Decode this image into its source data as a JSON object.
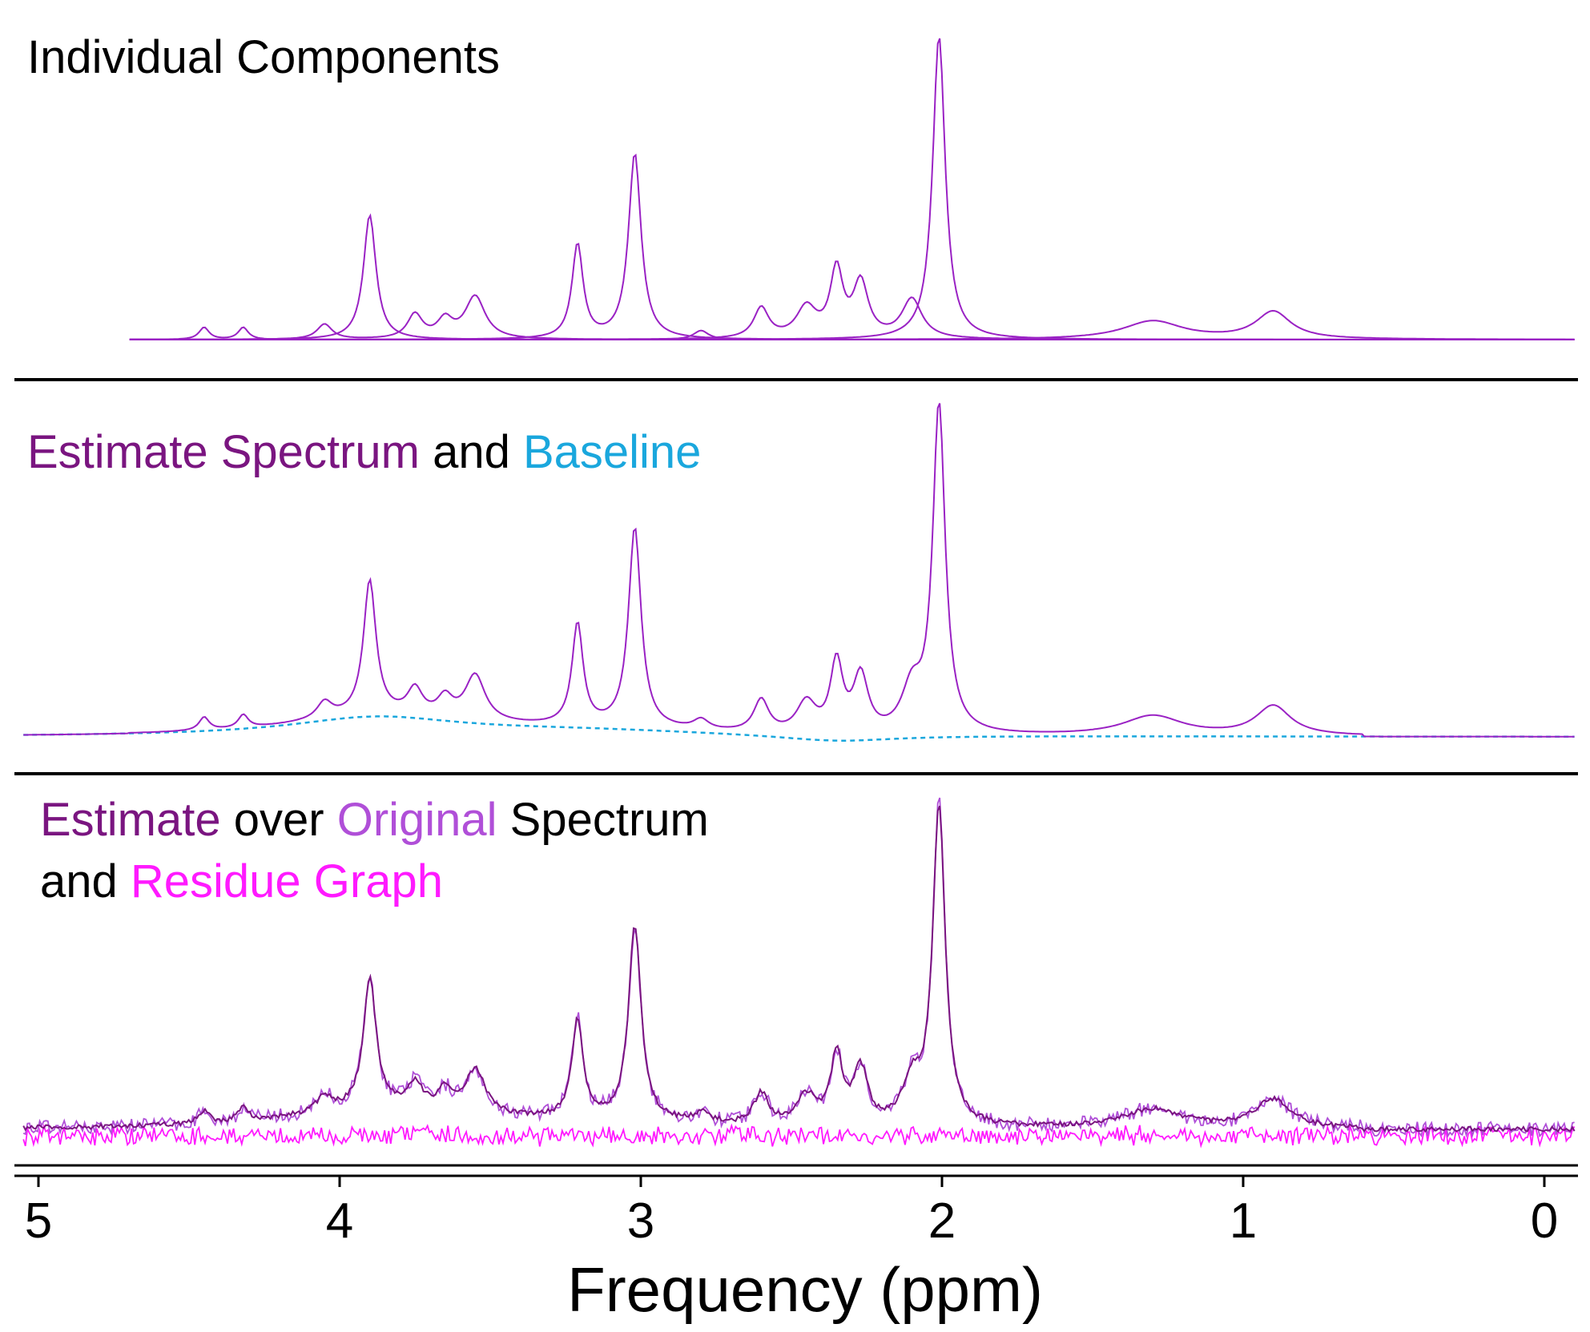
{
  "colors": {
    "black": "#000000",
    "dark_purple": "#7a1580",
    "purple": "#9a22c4",
    "light_purple": "#b04fd8",
    "cyan": "#1aa7dd",
    "magenta": "#ff1aff"
  },
  "panels": [
    {
      "title_segments": [
        {
          "text": "Individual Components",
          "color": "#000000"
        }
      ]
    },
    {
      "title_segments": [
        {
          "text": "Estimate Spectrum",
          "color": "#7a1580"
        },
        {
          "text": " and ",
          "color": "#000000"
        },
        {
          "text": "Baseline",
          "color": "#1aa7dd"
        }
      ]
    },
    {
      "title_line1": [
        {
          "text": "Estimate",
          "color": "#7a1580"
        },
        {
          "text": " over ",
          "color": "#000000"
        },
        {
          "text": "Original",
          "color": "#b04fd8"
        },
        {
          "text": " Spectrum",
          "color": "#000000"
        }
      ],
      "title_line2": [
        {
          "text": "and ",
          "color": "#000000"
        },
        {
          "text": "Residue Graph",
          "color": "#ff1aff"
        }
      ]
    }
  ],
  "x_axis": {
    "title": "Frequency (ppm)",
    "range": [
      5.05,
      -0.1
    ],
    "reversed": true,
    "ticks": [
      5,
      4,
      3,
      2,
      1,
      0
    ],
    "tick_labels": [
      "5",
      "4",
      "3",
      "2",
      "1",
      "0"
    ]
  },
  "chart_data": [
    {
      "type": "line",
      "title": "Individual Components",
      "x_range": [
        4.7,
        -0.1
      ],
      "series": [
        {
          "color": "#9a22c4",
          "peaks": [
            {
              "ppm": 3.9,
              "height": 0.41,
              "width": 0.025
            }
          ]
        },
        {
          "color": "#9a22c4",
          "peaks": [
            {
              "ppm": 3.21,
              "height": 0.31,
              "width": 0.022
            },
            {
              "ppm": 3.02,
              "height": 0.61,
              "width": 0.025
            }
          ]
        },
        {
          "color": "#9a22c4",
          "peaks": [
            {
              "ppm": 2.01,
              "height": 1.0,
              "width": 0.025
            }
          ]
        },
        {
          "color": "#9a22c4",
          "peaks": [
            {
              "ppm": 3.55,
              "height": 0.14,
              "width": 0.04
            },
            {
              "ppm": 3.75,
              "height": 0.08,
              "width": 0.03
            },
            {
              "ppm": 3.65,
              "height": 0.06,
              "width": 0.03
            },
            {
              "ppm": 4.05,
              "height": 0.05,
              "width": 0.03
            }
          ]
        },
        {
          "color": "#9a22c4",
          "peaks": [
            {
              "ppm": 2.35,
              "height": 0.22,
              "width": 0.025
            },
            {
              "ppm": 2.27,
              "height": 0.18,
              "width": 0.03
            },
            {
              "ppm": 2.45,
              "height": 0.1,
              "width": 0.04
            },
            {
              "ppm": 2.6,
              "height": 0.1,
              "width": 0.03
            },
            {
              "ppm": 2.1,
              "height": 0.13,
              "width": 0.04
            }
          ]
        },
        {
          "color": "#9a22c4",
          "peaks": [
            {
              "ppm": 1.3,
              "height": 0.06,
              "width": 0.12
            },
            {
              "ppm": 0.9,
              "height": 0.09,
              "width": 0.07
            }
          ]
        },
        {
          "color": "#9a22c4",
          "peaks": [
            {
              "ppm": 4.45,
              "height": 0.04,
              "width": 0.02
            },
            {
              "ppm": 4.32,
              "height": 0.04,
              "width": 0.02
            },
            {
              "ppm": 2.8,
              "height": 0.03,
              "width": 0.03
            }
          ]
        }
      ]
    },
    {
      "type": "line",
      "title": "Estimate Spectrum and Baseline",
      "series": [
        {
          "name": "Estimate Spectrum",
          "color": "#9a22c4"
        },
        {
          "name": "Baseline",
          "color": "#1aa7dd",
          "dashed": true
        }
      ]
    },
    {
      "type": "line",
      "title": "Estimate over Original Spectrum and Residue Graph",
      "series": [
        {
          "name": "Estimate",
          "color": "#7a1580"
        },
        {
          "name": "Original",
          "color": "#b04fd8"
        },
        {
          "name": "Residue Graph",
          "color": "#ff1aff"
        }
      ]
    }
  ]
}
